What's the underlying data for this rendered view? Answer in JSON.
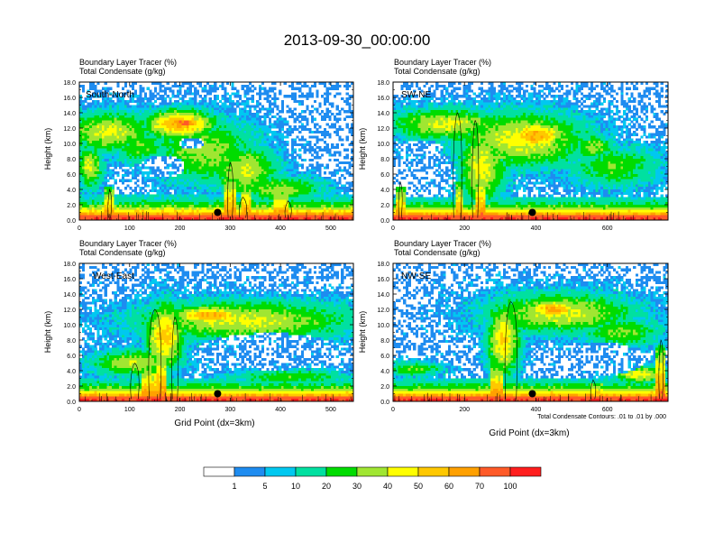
{
  "title": "2013-09-30_00:00:00",
  "colors": {
    "levels": [
      "#ffffff",
      "#1e8cf0",
      "#00c8f0",
      "#00e0a0",
      "#00dc00",
      "#a0e632",
      "#ffff00",
      "#ffc800",
      "#ffa000",
      "#ff5a28",
      "#ff1e1e"
    ],
    "contour": "#000000",
    "dot": "#000000"
  },
  "colorbar": {
    "labels": [
      "1",
      "5",
      "10",
      "20",
      "30",
      "40",
      "50",
      "60",
      "70",
      "100"
    ]
  },
  "footnote": "Total Condensate Contours: .01 to .01 by .000",
  "chart_data": [
    {
      "type": "heatmap",
      "id": "sn",
      "label": "South-North",
      "title_line1": "Boundary Layer Tracer   (%)",
      "title_line2": "Total Condensate   (g/kg)",
      "ylabel": "Height (km)",
      "xlabel": "",
      "xlim": [
        0,
        545
      ],
      "ylim": [
        0,
        18
      ],
      "xticks": [
        0,
        100,
        200,
        300,
        400,
        500
      ],
      "xtick_labels": [
        "0",
        "100",
        "200",
        "300",
        "400",
        "500"
      ],
      "yticks": [
        0,
        2,
        4,
        6,
        8,
        10,
        12,
        14,
        16,
        18
      ],
      "ytick_labels": [
        "0.0",
        "2.0",
        "4.0",
        "6.0",
        "8.0",
        "10.0",
        "12.0",
        "14.0",
        "16.0",
        "18.0"
      ],
      "marker": {
        "x": 275,
        "y": 1.0
      },
      "seed": 11,
      "cloud": [
        {
          "cx": 60,
          "cy": 11.5,
          "rx": 95,
          "ry": 2.8,
          "v": 42
        },
        {
          "cx": 200,
          "cy": 12.5,
          "rx": 75,
          "ry": 2.0,
          "v": 62
        },
        {
          "cx": 210,
          "cy": 12.6,
          "rx": 30,
          "ry": 0.9,
          "v": 80
        },
        {
          "cx": 250,
          "cy": 9.0,
          "rx": 110,
          "ry": 4.5,
          "v": 35
        },
        {
          "cx": 120,
          "cy": 9.5,
          "rx": 60,
          "ry": 2.2,
          "v": 30
        },
        {
          "cx": 330,
          "cy": 6.5,
          "rx": 70,
          "ry": 3.5,
          "v": 40
        },
        {
          "cx": 400,
          "cy": 4.0,
          "rx": 90,
          "ry": 1.8,
          "v": 35
        },
        {
          "cx": 20,
          "cy": 7.0,
          "rx": 30,
          "ry": 3.0,
          "v": 40
        }
      ],
      "holes": [
        {
          "cx": 165,
          "cy": 7.0,
          "rx": 45,
          "ry": 1.5
        },
        {
          "cx": 225,
          "cy": 10.0,
          "rx": 25,
          "ry": 0.8
        }
      ],
      "blPeakH": 1.0,
      "blTop": 3.2,
      "towers": [
        {
          "x": 60,
          "h": 4.5,
          "w": 10
        },
        {
          "x": 300,
          "h": 6.0,
          "w": 14
        },
        {
          "x": 330,
          "h": 5.0,
          "w": 10
        },
        {
          "x": 400,
          "h": 4.0,
          "w": 14
        }
      ],
      "contours": [
        {
          "x": 300,
          "w": 8,
          "h": 7.5
        },
        {
          "x": 325,
          "w": 12,
          "h": 3.0
        },
        {
          "x": 415,
          "w": 10,
          "h": 2.5
        },
        {
          "x": 60,
          "w": 4,
          "h": 4.0
        }
      ]
    },
    {
      "type": "heatmap",
      "id": "swne",
      "label": "SW-NE",
      "title_line1": "Boundary Layer Tracer   (%)",
      "title_line2": "Total Condensate   (g/kg)",
      "ylabel": "Height (km)",
      "xlabel": "",
      "xlim": [
        0,
        770
      ],
      "ylim": [
        0,
        18
      ],
      "xticks": [
        0,
        200,
        400,
        600
      ],
      "xtick_labels": [
        "0",
        "200",
        "400",
        "600"
      ],
      "yticks": [
        0,
        2,
        4,
        6,
        8,
        10,
        12,
        14,
        16,
        18
      ],
      "ytick_labels": [
        "0.0",
        "2.0",
        "4.0",
        "6.0",
        "8.0",
        "10.0",
        "12.0",
        "14.0",
        "16.0",
        "18.0"
      ],
      "marker": {
        "x": 390,
        "y": 1.0
      },
      "seed": 23,
      "cloud": [
        {
          "cx": 150,
          "cy": 12.5,
          "rx": 170,
          "ry": 2.2,
          "v": 42
        },
        {
          "cx": 360,
          "cy": 10.5,
          "rx": 200,
          "ry": 3.8,
          "v": 45
        },
        {
          "cx": 400,
          "cy": 11.0,
          "rx": 90,
          "ry": 2.0,
          "v": 62
        },
        {
          "cx": 250,
          "cy": 7.0,
          "rx": 70,
          "ry": 5.0,
          "v": 45
        },
        {
          "cx": 620,
          "cy": 7.0,
          "rx": 140,
          "ry": 3.0,
          "v": 28
        },
        {
          "cx": 560,
          "cy": 9.5,
          "rx": 60,
          "ry": 1.8,
          "v": 35
        }
      ],
      "holes": [
        {
          "cx": 100,
          "cy": 6.0,
          "rx": 75,
          "ry": 3.2
        },
        {
          "cx": 80,
          "cy": 9.3,
          "rx": 60,
          "ry": 1.2
        }
      ],
      "blPeakH": 1.0,
      "blTop": 3.0,
      "towers": [
        {
          "x": 20,
          "h": 4.5,
          "w": 16
        },
        {
          "x": 185,
          "h": 5.0,
          "w": 12
        },
        {
          "x": 245,
          "h": 6.0,
          "w": 14
        }
      ],
      "contours": [
        {
          "x": 180,
          "w": 20,
          "h": 14.0
        },
        {
          "x": 230,
          "w": 14,
          "h": 13.0
        },
        {
          "x": 20,
          "w": 6,
          "h": 5.0
        }
      ]
    },
    {
      "type": "heatmap",
      "id": "we",
      "label": "West-East",
      "title_line1": "Boundary Layer Tracer   (%)",
      "title_line2": "Total Condensate   (g/kg)",
      "ylabel": "Height (km)",
      "xlabel": "Grid Point (dx=3km)",
      "xlim": [
        0,
        545
      ],
      "ylim": [
        0,
        18
      ],
      "xticks": [
        0,
        100,
        200,
        300,
        400,
        500
      ],
      "xtick_labels": [
        "0",
        "100",
        "200",
        "300",
        "400",
        "500"
      ],
      "yticks": [
        0,
        2,
        4,
        6,
        8,
        10,
        12,
        14,
        16,
        18
      ],
      "ytick_labels": [
        "0.0",
        "2.0",
        "4.0",
        "6.0",
        "8.0",
        "10.0",
        "12.0",
        "14.0",
        "16.0",
        "18.0"
      ],
      "marker": {
        "x": 275,
        "y": 1.0
      },
      "seed": 37,
      "cloud": [
        {
          "cx": 330,
          "cy": 10.5,
          "rx": 230,
          "ry": 2.8,
          "v": 42
        },
        {
          "cx": 260,
          "cy": 11.2,
          "rx": 80,
          "ry": 1.3,
          "v": 62
        },
        {
          "cx": 170,
          "cy": 8.5,
          "rx": 40,
          "ry": 4.5,
          "v": 55
        },
        {
          "cx": 110,
          "cy": 5.0,
          "rx": 90,
          "ry": 1.8,
          "v": 40
        },
        {
          "cx": 420,
          "cy": 3.2,
          "rx": 130,
          "ry": 1.0,
          "v": 28
        }
      ],
      "holes": [
        {
          "cx": 380,
          "cy": 6.5,
          "rx": 150,
          "ry": 2.4
        }
      ],
      "blPeakH": 1.0,
      "blTop": 3.0,
      "towers": [
        {
          "x": 140,
          "h": 5.0,
          "w": 14
        },
        {
          "x": 165,
          "h": 7.0,
          "w": 10
        }
      ],
      "contours": [
        {
          "x": 150,
          "w": 22,
          "h": 12.0
        },
        {
          "x": 190,
          "w": 10,
          "h": 11.0
        },
        {
          "x": 110,
          "w": 14,
          "h": 5.0
        }
      ]
    },
    {
      "type": "heatmap",
      "id": "nwse",
      "label": "NW-SE",
      "title_line1": "Boundary Layer Tracer   (%)",
      "title_line2": "Total Condensate   (g/kg)",
      "ylabel": "Height (km)",
      "xlabel": "Grid Point (dx=3km)",
      "xlim": [
        0,
        770
      ],
      "ylim": [
        0,
        18
      ],
      "xticks": [
        0,
        200,
        400,
        600
      ],
      "xtick_labels": [
        "0",
        "200",
        "400",
        "600"
      ],
      "yticks": [
        0,
        2,
        4,
        6,
        8,
        10,
        12,
        14,
        16,
        18
      ],
      "ytick_labels": [
        "0.0",
        "2.0",
        "4.0",
        "6.0",
        "8.0",
        "10.0",
        "12.0",
        "14.0",
        "16.0",
        "18.0"
      ],
      "marker": {
        "x": 390,
        "y": 1.0
      },
      "seed": 51,
      "cloud": [
        {
          "cx": 470,
          "cy": 11.5,
          "rx": 220,
          "ry": 2.8,
          "v": 42
        },
        {
          "cx": 450,
          "cy": 12.0,
          "rx": 80,
          "ry": 1.4,
          "v": 62
        },
        {
          "cx": 310,
          "cy": 8.0,
          "rx": 50,
          "ry": 5.0,
          "v": 50
        },
        {
          "cx": 640,
          "cy": 9.0,
          "rx": 120,
          "ry": 2.0,
          "v": 32
        },
        {
          "cx": 60,
          "cy": 4.2,
          "rx": 90,
          "ry": 1.0,
          "v": 30
        },
        {
          "cx": 690,
          "cy": 3.5,
          "rx": 80,
          "ry": 1.2,
          "v": 45
        }
      ],
      "holes": [
        {
          "cx": 570,
          "cy": 5.5,
          "rx": 140,
          "ry": 2.2
        }
      ],
      "blPeakH": 1.0,
      "blTop": 3.0,
      "towers": [
        {
          "x": 290,
          "h": 5.0,
          "w": 16
        },
        {
          "x": 750,
          "h": 7.5,
          "w": 12
        },
        {
          "x": 570,
          "h": 2.5,
          "w": 18
        }
      ],
      "contours": [
        {
          "x": 330,
          "w": 30,
          "h": 13.0
        },
        {
          "x": 750,
          "w": 8,
          "h": 8.0
        },
        {
          "x": 560,
          "w": 10,
          "h": 2.8
        }
      ]
    }
  ]
}
